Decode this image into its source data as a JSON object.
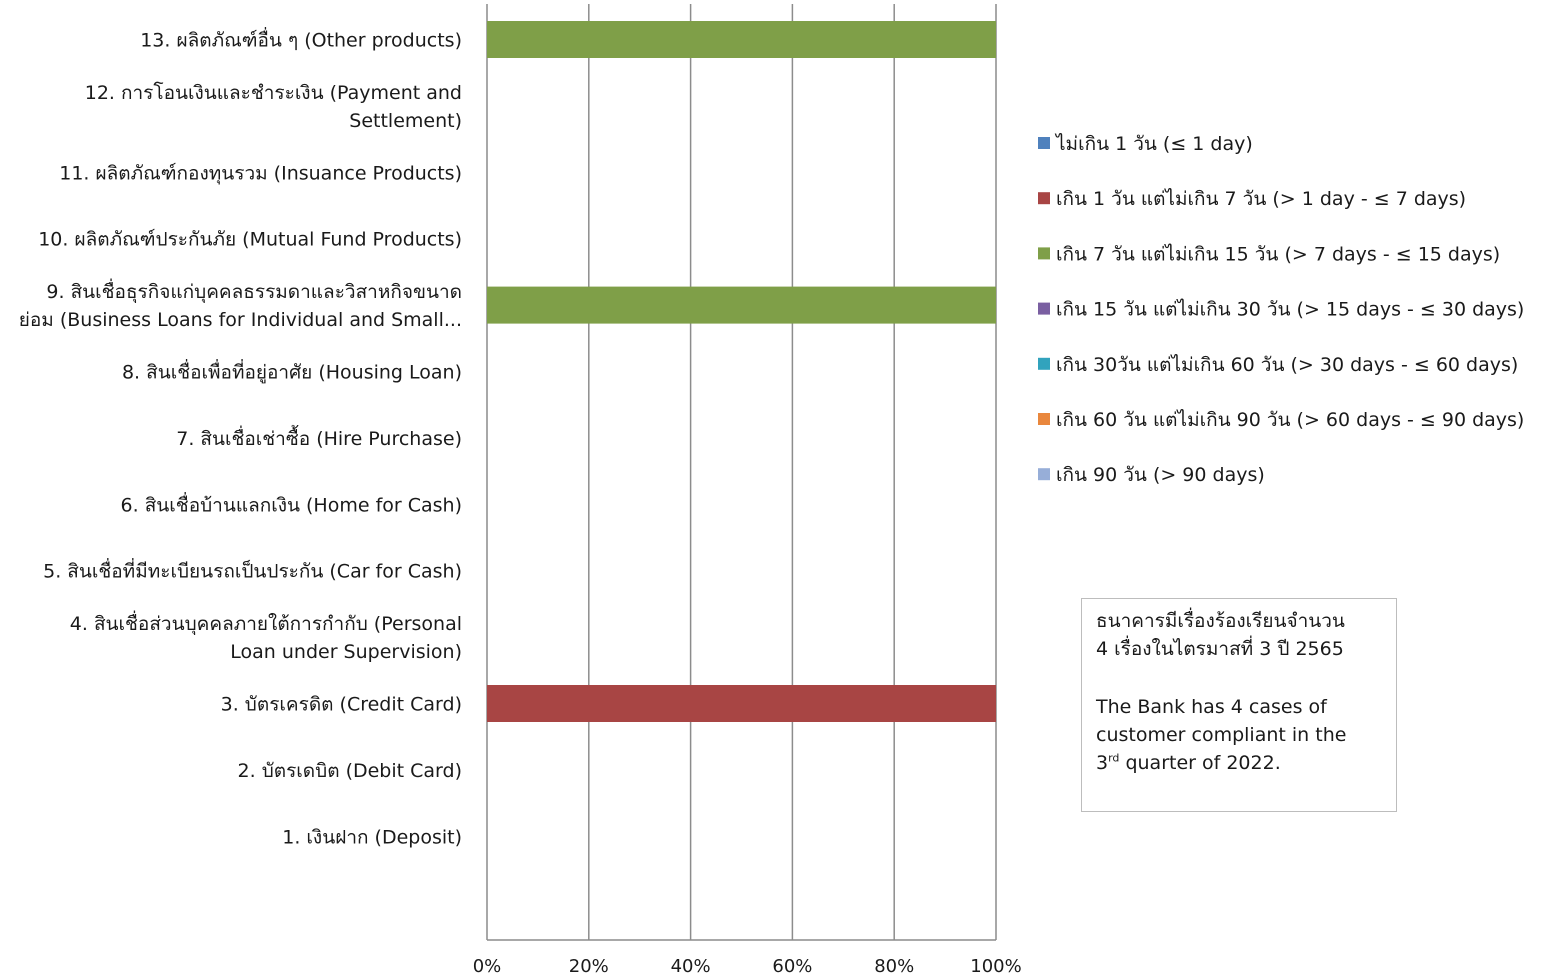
{
  "chart_data": {
    "type": "bar",
    "orientation": "horizontal",
    "stacked": true,
    "percent_stacked": true,
    "categories": [
      [
        "13. ผลิตภัณฑ์อื่น ๆ (Other products)"
      ],
      [
        "12. การโอนเงินและชำระเงิน (Payment and",
        "Settlement)"
      ],
      [
        "11. ผลิตภัณฑ์กองทุนรวม (Insuance Products)"
      ],
      [
        "10. ผลิตภัณฑ์ประกันภัย (Mutual Fund Products)"
      ],
      [
        "9. สินเชื่อธุรกิจแก่บุคคลธรรมดาและวิสาหกิจขนาด",
        "ย่อม (Business Loans for Individual and Small..."
      ],
      [
        "8. สินเชื่อเพื่อที่อยู่อาศัย (Housing Loan)"
      ],
      [
        "7. สินเชื่อเช่าซื้อ (Hire Purchase)"
      ],
      [
        "6. สินเชื่อบ้านแลกเงิน (Home for Cash)"
      ],
      [
        "5. สินเชื่อที่มีทะเบียนรถเป็นประกัน (Car for Cash)"
      ],
      [
        "4. สินเชื่อส่วนบุคคลภายใต้การกำกับ (Personal",
        "Loan under Supervision)"
      ],
      [
        "3. บัตรเครดิต (Credit Card)"
      ],
      [
        "2. บัตรเดบิต (Debit Card)"
      ],
      [
        "1. เงินฝาก (Deposit)"
      ]
    ],
    "series": [
      {
        "name": "ไม่เกิน 1 วัน (≤ 1 day)",
        "color": "#4f81bd",
        "values": [
          0,
          0,
          0,
          0,
          0,
          0,
          0,
          0,
          0,
          0,
          0,
          0,
          0
        ]
      },
      {
        "name": "เกิน 1 วัน แต่ไม่เกิน 7 วัน (> 1 day - ≤ 7 days)",
        "color": "#a84544",
        "values": [
          0,
          0,
          0,
          0,
          0,
          0,
          0,
          0,
          0,
          0,
          100,
          0,
          0
        ]
      },
      {
        "name": "เกิน 7 วัน แต่ไม่เกิน 15 วัน (> 7 days - ≤ 15 days)",
        "color": "#7f9f48",
        "values": [
          100,
          0,
          0,
          0,
          100,
          0,
          0,
          0,
          0,
          0,
          0,
          0,
          0
        ]
      },
      {
        "name": "เกิน 15 วัน แต่ไม่เกิน 30 วัน (> 15 days - ≤ 30 days)",
        "color": "#7a5fa1",
        "values": [
          0,
          0,
          0,
          0,
          0,
          0,
          0,
          0,
          0,
          0,
          0,
          0,
          0
        ]
      },
      {
        "name": "เกิน 30วัน แต่ไม่เกิน 60 วัน (> 30 days - ≤ 60 days)",
        "color": "#31a3bd",
        "values": [
          0,
          0,
          0,
          0,
          0,
          0,
          0,
          0,
          0,
          0,
          0,
          0,
          0
        ]
      },
      {
        "name": "เกิน 60 วัน แต่ไม่เกิน 90 วัน (> 60 days - ≤ 90 days)",
        "color": "#e9873d",
        "values": [
          0,
          0,
          0,
          0,
          0,
          0,
          0,
          0,
          0,
          0,
          0,
          0,
          0
        ]
      },
      {
        "name": "เกิน 90 วัน (> 90 days)",
        "color": "#97aed8",
        "values": [
          0,
          0,
          0,
          0,
          0,
          0,
          0,
          0,
          0,
          0,
          0,
          0,
          0
        ]
      }
    ],
    "x_ticks": [
      "0%",
      "20%",
      "40%",
      "60%",
      "80%",
      "100%"
    ],
    "xlim": [
      0,
      100
    ],
    "grid": true,
    "legend_position": "right"
  },
  "note": {
    "line1": "ธนาคารมีเรื่องร้องเรียนจำนวน",
    "line2": "4 เรื่องในไตรมาสที่ 3 ปี 2565",
    "line3": "The Bank has 4 cases of",
    "line4": "customer compliant in the",
    "line5_num": "3",
    "line5_sup": "rd",
    "line5_rest": " quarter of 2022."
  }
}
